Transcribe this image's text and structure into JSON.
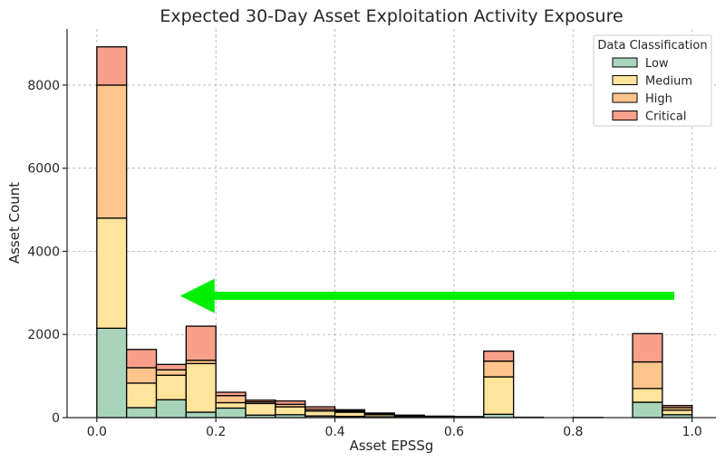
{
  "chart_data": {
    "type": "bar",
    "stacked": true,
    "title": "Expected 30-Day Asset Exploitation Activity Exposure",
    "xlabel": "Asset EPSSg",
    "ylabel": "Asset Count",
    "xlim": [
      -0.05,
      1.04
    ],
    "ylim": [
      0,
      9350
    ],
    "x_ticks": [
      "0.0",
      "0.2",
      "0.4",
      "0.6",
      "0.8",
      "1.0"
    ],
    "x_tick_values": [
      0,
      0.2,
      0.4,
      0.6,
      0.8,
      1.0
    ],
    "y_ticks": [
      "0",
      "2000",
      "4000",
      "6000",
      "8000"
    ],
    "y_tick_values": [
      0,
      2000,
      4000,
      6000,
      8000
    ],
    "grid": true,
    "legend": {
      "title": "Data Classification",
      "placement": "top-right",
      "entries": [
        "Low",
        "Medium",
        "High",
        "Critical"
      ]
    },
    "bin_edges": [
      0,
      0.05,
      0.1,
      0.15,
      0.2,
      0.25,
      0.3,
      0.35,
      0.4,
      0.45,
      0.5,
      0.55,
      0.6,
      0.65,
      0.7,
      0.75,
      0.8,
      0.85,
      0.9,
      0.95,
      1.0
    ],
    "series": [
      {
        "name": "Low",
        "color": "#a8d5ba",
        "values": [
          2150,
          240,
          430,
          130,
          230,
          60,
          70,
          40,
          30,
          20,
          10,
          5,
          5,
          80,
          5,
          0,
          0,
          0,
          370,
          70
        ]
      },
      {
        "name": "Medium",
        "color": "#ffe49c",
        "values": [
          2650,
          590,
          590,
          1170,
          130,
          280,
          190,
          120,
          100,
          50,
          30,
          20,
          10,
          900,
          5,
          0,
          5,
          0,
          330,
          110
        ]
      },
      {
        "name": "High",
        "color": "#fdc58c",
        "values": [
          3200,
          370,
          130,
          80,
          170,
          40,
          60,
          40,
          30,
          20,
          10,
          5,
          5,
          380,
          0,
          0,
          0,
          0,
          640,
          60
        ]
      },
      {
        "name": "Critical",
        "color": "#f9a08b",
        "values": [
          920,
          440,
          130,
          820,
          80,
          40,
          80,
          60,
          30,
          20,
          10,
          5,
          5,
          240,
          0,
          0,
          0,
          0,
          680,
          50
        ]
      }
    ],
    "annotation": {
      "type": "arrow",
      "color": "#00ee00",
      "from": [
        0.97,
        2930
      ],
      "to": [
        0.14,
        2930
      ]
    }
  }
}
